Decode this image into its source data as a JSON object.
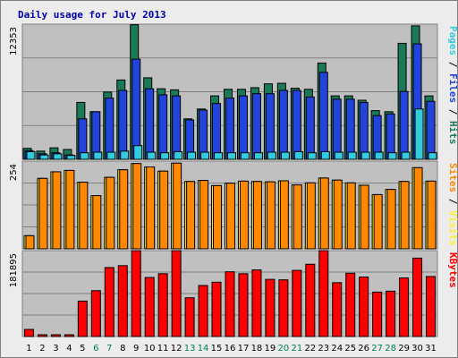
{
  "chart_data": {
    "type": "bar",
    "title": "Daily usage for July 2013",
    "categories": [
      "1",
      "2",
      "3",
      "4",
      "5",
      "6",
      "7",
      "8",
      "9",
      "10",
      "11",
      "12",
      "13",
      "14",
      "15",
      "16",
      "17",
      "18",
      "19",
      "20",
      "21",
      "22",
      "23",
      "24",
      "25",
      "26",
      "27",
      "28",
      "29",
      "30",
      "31"
    ],
    "weekend_days": [
      "6",
      "7",
      "13",
      "14",
      "20",
      "21",
      "27",
      "28"
    ],
    "panels": [
      {
        "name": "top",
        "ymax_label": "12353",
        "ymax": 12353,
        "axis_label_parts": [
          {
            "text": "Pages",
            "color": "#33ccdd"
          },
          {
            "text": " / ",
            "color": "#000000"
          },
          {
            "text": "Files",
            "color": "#2244dd"
          },
          {
            "text": " / ",
            "color": "#000000"
          },
          {
            "text": "Hits",
            "color": "#1a7a55"
          }
        ],
        "series": [
          {
            "name": "Hits",
            "color": "#1a7a55",
            "values": [
              1000,
              750,
              1050,
              900,
              5200,
              4350,
              6150,
              7250,
              12300,
              7450,
              6450,
              6350,
              3700,
              4600,
              5800,
              6400,
              6400,
              6550,
              6900,
              6950,
              6500,
              6400,
              8800,
              5800,
              5800,
              5400,
              4450,
              4350,
              10600,
              12200,
              5800
            ]
          },
          {
            "name": "Files",
            "color": "#2244dd",
            "values": [
              800,
              500,
              600,
              400,
              3700,
              4350,
              5600,
              6300,
              9150,
              6450,
              5900,
              5800,
              3600,
              4500,
              5100,
              5600,
              5800,
              6000,
              6000,
              6300,
              6300,
              5700,
              7950,
              5500,
              5500,
              5200,
              4000,
              4150,
              6200,
              10550,
              5300
            ]
          },
          {
            "name": "Pages",
            "color": "#33ccdd",
            "values": [
              700,
              400,
              500,
              350,
              600,
              650,
              650,
              750,
              1250,
              650,
              600,
              700,
              650,
              650,
              600,
              600,
              600,
              600,
              650,
              650,
              700,
              600,
              700,
              650,
              650,
              650,
              650,
              600,
              650,
              4600,
              600
            ]
          }
        ]
      },
      {
        "name": "middle",
        "ymax_label": "254",
        "ymax": 254,
        "axis_label_parts": [
          {
            "text": "Sites",
            "color": "#ff8800"
          },
          {
            "text": " / ",
            "color": "#000000"
          },
          {
            "text": "Visits",
            "color": "#ffee33"
          }
        ],
        "series": [
          {
            "name": "Visits",
            "color": "#ffee33",
            "values": [
              38,
              204,
              223,
              227,
              193,
              154,
              207,
              229,
              247,
              237,
              225,
              248,
              195,
              198,
              183,
              190,
              196,
              195,
              194,
              197,
              185,
              191,
              205,
              199,
              191,
              184,
              157,
              172,
              195,
              235,
              196
            ]
          },
          {
            "name": "Sites",
            "color": "#ff8800",
            "values": [
              38,
              204,
              223,
              227,
              193,
              154,
              207,
              229,
              247,
              237,
              225,
              248,
              195,
              198,
              183,
              190,
              196,
              195,
              194,
              197,
              185,
              191,
              205,
              199,
              191,
              184,
              157,
              172,
              195,
              235,
              196
            ]
          }
        ]
      },
      {
        "name": "bottom",
        "ymax_label": "181895",
        "ymax": 181895,
        "axis_label_parts": [
          {
            "text": "KBytes",
            "color": "#ff0000"
          }
        ],
        "series": [
          {
            "name": "KBytes",
            "color": "#ff0000",
            "values": [
              15000,
              2000,
              2000,
              2000,
              75000,
              97000,
              146000,
              150000,
              187000,
              125000,
              133000,
              182000,
              82000,
              108000,
              115000,
              137000,
              133000,
              141000,
              121000,
              120000,
              140000,
              153000,
              188000,
              114000,
              134000,
              126000,
              94000,
              96000,
              124000,
              166000,
              127000
            ]
          }
        ]
      }
    ]
  }
}
